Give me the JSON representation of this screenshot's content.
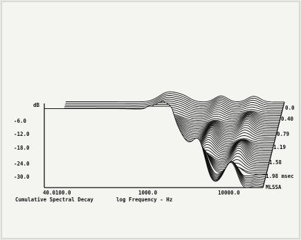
{
  "chart_data": {
    "type": "waterfall",
    "title": "Cumulative Spectral Decay",
    "ylabel": "dB",
    "xlabel": "log Frequency - Hz",
    "x_scale": "log",
    "xlim": [
      40.0,
      20000
    ],
    "x_ticks": [
      "40.0",
      "100.0",
      "1000.0",
      "10000.0"
    ],
    "y_ticks": [
      "-6.0",
      "-12.0",
      "-18.0",
      "-24.0",
      "-30.0"
    ],
    "time_axis_ticks": [
      "0.0",
      "0.40",
      "0.79",
      "1.19",
      "1.58",
      "1.98 msec"
    ],
    "time_label": "msec",
    "brand": "MLSSA",
    "trace_color": "#111111",
    "slice_count": 52
  }
}
